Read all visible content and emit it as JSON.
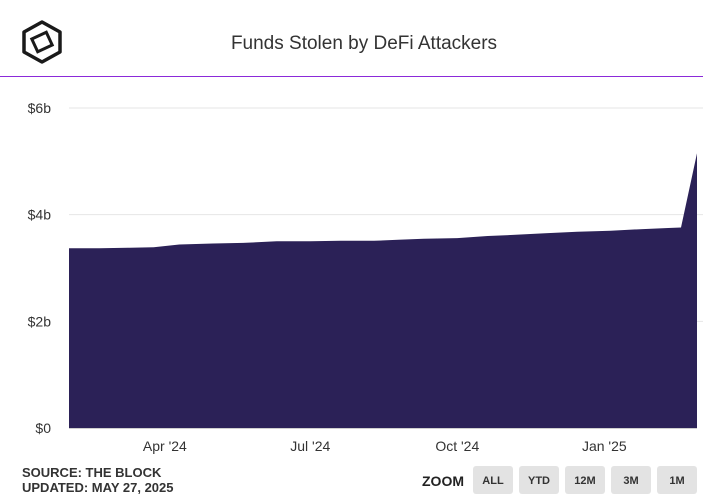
{
  "header": {
    "title": "Funds Stolen by DeFi Attackers"
  },
  "footer": {
    "source": "SOURCE: THE BLOCK",
    "updated": "UPDATED: MAY 27, 2025"
  },
  "zoom": {
    "label": "ZOOM",
    "buttons": [
      "ALL",
      "YTD",
      "12M",
      "3M",
      "1M"
    ]
  },
  "colors": {
    "area": "#2b2157",
    "accent": "#8b2ad9",
    "grid": "#e6e6e6"
  },
  "chart_data": {
    "type": "area",
    "title": "Funds Stolen by DeFi Attackers",
    "xlabel": "",
    "ylabel": "",
    "x_ticks": [
      {
        "label": "Apr '24",
        "date": "2024-04-01"
      },
      {
        "label": "Jul '24",
        "date": "2024-07-01"
      },
      {
        "label": "Oct '24",
        "date": "2024-10-01"
      },
      {
        "label": "Jan '25",
        "date": "2025-01-01"
      }
    ],
    "y_ticks": [
      {
        "label": "$0",
        "value": 0
      },
      {
        "label": "$2b",
        "value": 2
      },
      {
        "label": "$4b",
        "value": 4
      },
      {
        "label": "$6b",
        "value": 6
      }
    ],
    "xlim": [
      "2024-02-01",
      "2025-02-28"
    ],
    "ylim": [
      0,
      6
    ],
    "y_unit": "billion USD",
    "grid": true,
    "legend": "none",
    "series": [
      {
        "points": [
          [
            "2024-02-01",
            3.37
          ],
          [
            "2024-02-20",
            3.37
          ],
          [
            "2024-03-10",
            3.38
          ],
          [
            "2024-03-25",
            3.39
          ],
          [
            "2024-04-10",
            3.44
          ],
          [
            "2024-05-01",
            3.46
          ],
          [
            "2024-05-20",
            3.47
          ],
          [
            "2024-06-10",
            3.5
          ],
          [
            "2024-07-01",
            3.5
          ],
          [
            "2024-07-20",
            3.51
          ],
          [
            "2024-08-10",
            3.51
          ],
          [
            "2024-08-25",
            3.53
          ],
          [
            "2024-09-10",
            3.55
          ],
          [
            "2024-10-01",
            3.56
          ],
          [
            "2024-10-20",
            3.6
          ],
          [
            "2024-11-05",
            3.62
          ],
          [
            "2024-11-25",
            3.65
          ],
          [
            "2024-12-15",
            3.68
          ],
          [
            "2025-01-05",
            3.7
          ],
          [
            "2025-01-25",
            3.73
          ],
          [
            "2025-02-10",
            3.75
          ],
          [
            "2025-02-18",
            3.76
          ],
          [
            "2025-02-28",
            5.15
          ]
        ]
      }
    ]
  }
}
